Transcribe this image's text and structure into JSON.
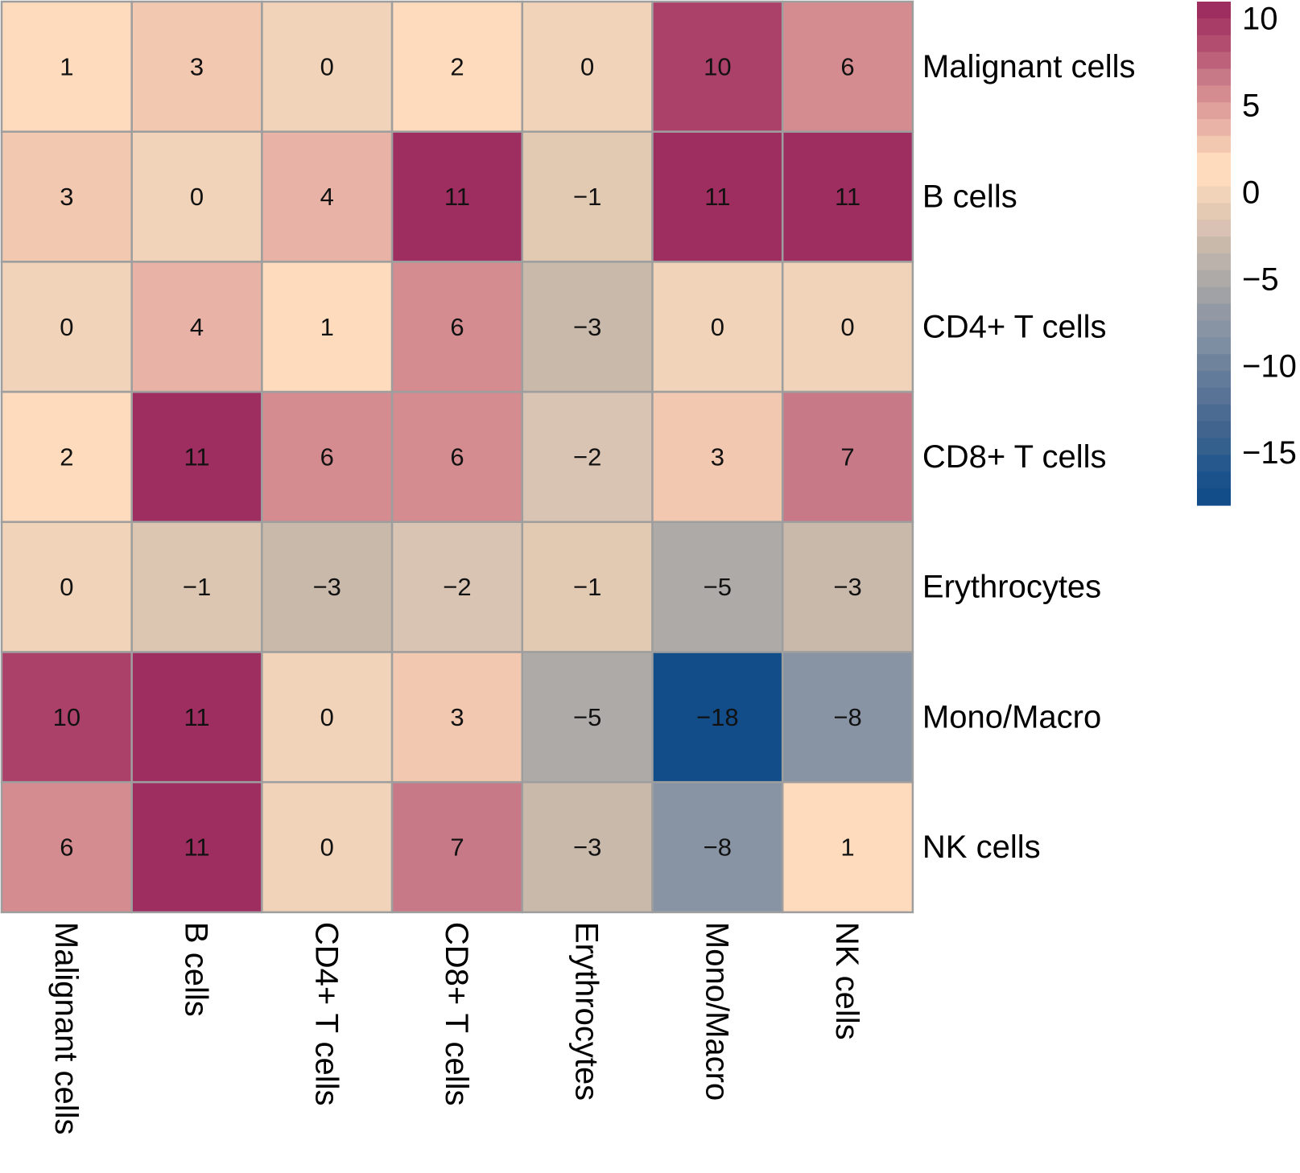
{
  "chart_data": {
    "type": "heatmap",
    "title": "",
    "xlabel": "",
    "ylabel": "",
    "rows": [
      "Malignant cells",
      "B cells",
      "CD4+ T cells",
      "CD8+ T cells",
      "Erythrocytes",
      "Mono/Macro",
      "NK cells"
    ],
    "columns": [
      "Malignant cells",
      "B cells",
      "CD4+ T cells",
      "CD8+ T cells",
      "Erythrocytes",
      "Mono/Macro",
      "NK cells"
    ],
    "values": [
      [
        1,
        3,
        0,
        2,
        0,
        10,
        6
      ],
      [
        3,
        0,
        4,
        11,
        -1,
        11,
        11
      ],
      [
        0,
        4,
        1,
        6,
        -3,
        0,
        0
      ],
      [
        2,
        11,
        6,
        6,
        -2,
        3,
        7
      ],
      [
        0,
        -1,
        -3,
        -2,
        -1,
        -5,
        -3
      ],
      [
        10,
        11,
        0,
        3,
        -5,
        -18,
        -8
      ],
      [
        6,
        11,
        0,
        7,
        -3,
        -8,
        1
      ]
    ],
    "cell_labels": [
      [
        "1",
        "3",
        "0",
        "2",
        "0",
        "10",
        "6"
      ],
      [
        "3",
        "0",
        "4",
        "11",
        "−1",
        "11",
        "11"
      ],
      [
        "0",
        "4",
        "1",
        "6",
        "−3",
        "0",
        "0"
      ],
      [
        "2",
        "11",
        "6",
        "6",
        "−2",
        "3",
        "7"
      ],
      [
        "0",
        "−1",
        "−3",
        "−2",
        "−1",
        "−5",
        "−3"
      ],
      [
        "10",
        "11",
        "0",
        "3",
        "−5",
        "−18",
        "−8"
      ],
      [
        "6",
        "11",
        "0",
        "7",
        "−3",
        "−8",
        "1"
      ]
    ],
    "cell_colors": [
      [
        "#fddbbc",
        "#f3c8b0",
        "#f0d3b8",
        "#fddbbc",
        "#f0d3b8",
        "#ab4169",
        "#d48c90"
      ],
      [
        "#f3c8b0",
        "#f0d3b8",
        "#e8b3a6",
        "#9e2d60",
        "#e2c9b2",
        "#9e2d60",
        "#9e2d60"
      ],
      [
        "#f0d3b8",
        "#e8b3a6",
        "#fddbbc",
        "#d48c90",
        "#c9b9ab",
        "#f0d3b8",
        "#f0d3b8"
      ],
      [
        "#fddbbc",
        "#9e2d60",
        "#d48c90",
        "#d48c90",
        "#d9c4b4",
        "#f3c8b0",
        "#c87988"
      ],
      [
        "#f0d3b8",
        "#ddc6b1",
        "#c9b9ab",
        "#d9c4b4",
        "#e2c9b2",
        "#aeaaa7",
        "#c9b9ab"
      ],
      [
        "#ab4169",
        "#9e2d60",
        "#f0d3b8",
        "#f3c8b0",
        "#aeaaa7",
        "#124d8a",
        "#8894a4"
      ],
      [
        "#d48c90",
        "#9e2d60",
        "#f0d3b8",
        "#c87988",
        "#c9b9ab",
        "#8894a4",
        "#fddbbc"
      ]
    ],
    "grid_color": "#9e9e9e",
    "colorbar": {
      "range": [
        -18,
        11
      ],
      "ticks": [
        10,
        5,
        0,
        -5,
        -10,
        -15
      ],
      "tick_labels": [
        "10",
        "5",
        "0",
        "−5",
        "−10",
        "−15"
      ],
      "placement": "top-right",
      "steps_top_to_bottom": [
        "#9e2d60",
        "#a83d67",
        "#b24d6f",
        "#bd6079",
        "#c87988",
        "#d48c90",
        "#e0a09b",
        "#e9b4a7",
        "#f3c8b0",
        "#fddbbc",
        "#fddbbc",
        "#f0d3b8",
        "#e5cab3",
        "#d9c1b3",
        "#c9b9ab",
        "#bbb2ac",
        "#aeaaa7",
        "#a0a2a6",
        "#9399a4",
        "#8894a4",
        "#7d8da2",
        "#6f839d",
        "#637b9a",
        "#587395",
        "#4c6b92",
        "#41648f",
        "#33608d",
        "#27588d",
        "#1b528b",
        "#124d8a"
      ]
    }
  }
}
